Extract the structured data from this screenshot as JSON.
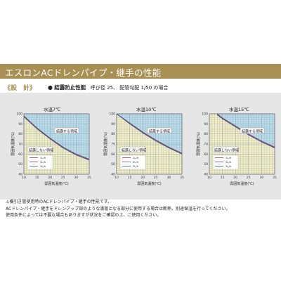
{
  "header": {
    "banner_title": "エスロンACドレンパイプ・継手の性能"
  },
  "section": {
    "heading": "《設　計》",
    "bullet": "●",
    "condition_title": "結露防止性能",
    "condition_detail": "呼び径 25、 配管勾配 1/50 の場合"
  },
  "colors": {
    "banner": "#a88f54",
    "condensation_zone": "#bcdde8",
    "safe_zone": "#f4eec2",
    "grid_line": "#6a8fb0",
    "boundary_line": "#a04040"
  },
  "chart_data": [
    {
      "type": "area",
      "title": "水温7℃",
      "xlabel": "雰囲気温度(℃)",
      "ylabel": "雰囲気湿度(%)",
      "xlim": [
        10,
        35
      ],
      "ylim": [
        40,
        100
      ],
      "xticks": [
        10,
        15,
        20,
        25,
        30,
        35
      ],
      "yticks": [
        40,
        50,
        60,
        70,
        80,
        90,
        100
      ],
      "grid": true,
      "zone_upper_label": "結露する領域",
      "zone_lower_label": "結露しない領域",
      "legend_position": "lower-left",
      "series": [
        {
          "name": "1L/h",
          "x": [
            10,
            15,
            20,
            25,
            30,
            35
          ],
          "y": [
            98,
            86,
            76,
            67,
            60,
            55
          ]
        },
        {
          "name": "5L/h",
          "x": [
            10,
            15,
            20,
            25,
            30,
            35
          ],
          "y": [
            97,
            85,
            75,
            66,
            59,
            54
          ]
        },
        {
          "name": "3L/h",
          "x": [
            10,
            15,
            20,
            25,
            30,
            35
          ],
          "y": [
            97.5,
            85.5,
            75.5,
            66.5,
            59.5,
            54.5
          ]
        }
      ]
    },
    {
      "type": "area",
      "title": "水温10℃",
      "xlabel": "雰囲気温度(℃)",
      "ylabel": "雰囲気湿度(%)",
      "xlim": [
        10,
        35
      ],
      "ylim": [
        40,
        100
      ],
      "xticks": [
        10,
        15,
        20,
        25,
        30,
        35
      ],
      "yticks": [
        40,
        50,
        60,
        70,
        80,
        90,
        100
      ],
      "grid": true,
      "zone_upper_label": "結露する領域",
      "zone_lower_label": "結露しない領域",
      "legend_position": "lower-left",
      "series": [
        {
          "name": "1L/h",
          "x": [
            10,
            15,
            20,
            25,
            30,
            35
          ],
          "y": [
            100,
            91,
            82,
            74,
            67,
            61
          ]
        },
        {
          "name": "5L/h",
          "x": [
            10,
            15,
            20,
            25,
            30,
            35
          ],
          "y": [
            100,
            90,
            81,
            73,
            66,
            60
          ]
        },
        {
          "name": "3L/h",
          "x": [
            10,
            15,
            20,
            25,
            30,
            35
          ],
          "y": [
            100,
            90.5,
            81.5,
            73.5,
            66.5,
            60.5
          ]
        }
      ]
    },
    {
      "type": "area",
      "title": "水温15℃",
      "xlabel": "雰囲気温度(℃)",
      "ylabel": "雰囲気湿度(%)",
      "xlim": [
        10,
        35
      ],
      "ylim": [
        40,
        100
      ],
      "xticks": [
        10,
        15,
        20,
        25,
        30,
        35
      ],
      "yticks": [
        40,
        50,
        60,
        70,
        80,
        90,
        100
      ],
      "grid": true,
      "zone_upper_label": "結露する領域",
      "zone_lower_label": "結露しない領域",
      "legend_position": "lower-left",
      "series": [
        {
          "name": "1L/h",
          "x": [
            13,
            15,
            20,
            25,
            30,
            35
          ],
          "y": [
            100,
            96,
            88,
            80,
            73,
            67
          ]
        },
        {
          "name": "5L/h",
          "x": [
            13,
            15,
            20,
            25,
            30,
            35
          ],
          "y": [
            99,
            95,
            87,
            79,
            72,
            66
          ]
        },
        {
          "name": "3L/h",
          "x": [
            13,
            15,
            20,
            25,
            30,
            35
          ],
          "y": [
            99.5,
            95.5,
            87.5,
            79.5,
            72.5,
            66.5
          ]
        }
      ]
    }
  ],
  "notes": {
    "line1": "⚠横引き管使用時のACドレンパイプ・継手の性能です。",
    "line2": "ACドレンパイプ・継手をドレンアップ部のような満管となる部分に使用する場合は断熱、別途保温を行ってください。",
    "line3": "使用条件によっては不要な場合もありますが状況をご確認の上、ご使用ください。"
  }
}
